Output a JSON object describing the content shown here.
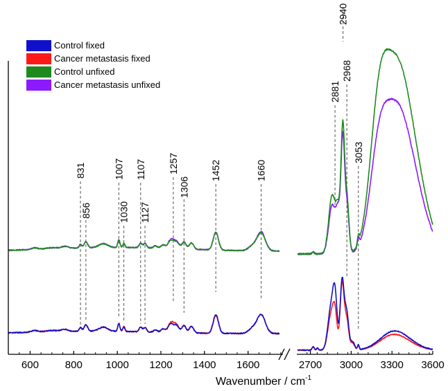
{
  "chart_data": {
    "type": "line",
    "xlabel": "Wavenumber / cm",
    "xlabel_sup": "-1",
    "x_axis_break": true,
    "segments": [
      {
        "xlim": [
          500,
          1760
        ],
        "ticks": [
          600,
          800,
          1000,
          1200,
          1400,
          1600
        ]
      },
      {
        "xlim": [
          2600,
          3600
        ],
        "ticks": [
          2700,
          3000,
          3300,
          3600
        ]
      }
    ],
    "tick_labels": [
      "600",
      "800",
      "1000",
      "1200",
      "1400",
      "1600",
      "2700",
      "3000",
      "3300",
      "3600"
    ],
    "grid": false,
    "legend_position": "top-left",
    "series": [
      {
        "name": "Control fixed",
        "color": "#1010cc",
        "group": "fixed"
      },
      {
        "name": "Cancer metastasis fixed",
        "color": "#ff1a1a",
        "group": "fixed"
      },
      {
        "name": "Control unfixed",
        "color": "#1e8a1e",
        "group": "unfixed"
      },
      {
        "name": "Cancer metastasis unfixed",
        "color": "#8c1aff",
        "group": "unfixed"
      }
    ],
    "peaks": [
      {
        "label": "831",
        "x": 831
      },
      {
        "label": "856",
        "x": 856
      },
      {
        "label": "1007",
        "x": 1007
      },
      {
        "label": "1030",
        "x": 1030
      },
      {
        "label": "1107",
        "x": 1107
      },
      {
        "label": "1127",
        "x": 1127
      },
      {
        "label": "1257",
        "x": 1257
      },
      {
        "label": "1306",
        "x": 1306
      },
      {
        "label": "1452",
        "x": 1452
      },
      {
        "label": "1660",
        "x": 1660
      },
      {
        "label": "2881",
        "x": 2881
      },
      {
        "label": "2940",
        "x": 2940
      },
      {
        "label": "2968",
        "x": 2968
      },
      {
        "label": "3053",
        "x": 3053
      }
    ]
  }
}
